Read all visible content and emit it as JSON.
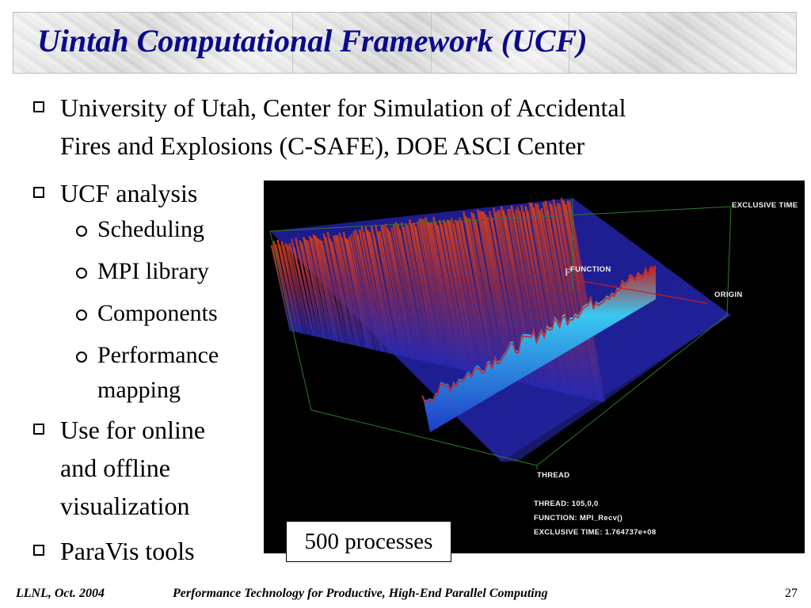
{
  "slide": {
    "title": "Uintah Computational Framework (UCF)",
    "bullets": [
      "University of Utah, Center for Simulation of Accidental",
      "Fires and Explosions (C-SAFE), DOE ASCI Center",
      "UCF analysis",
      "Use for online",
      "and offline",
      "visualization",
      "ParaVis tools"
    ],
    "sub_bullets": [
      "Scheduling",
      "MPI library",
      "Components",
      "Performance",
      "mapping"
    ]
  },
  "visualization": {
    "axis_labels": {
      "exclusive_time": "EXCLUSIVE TIME",
      "function": "FUNCTION",
      "origin": "ORIGIN",
      "thread": "THREAD",
      "function_marker": "F"
    },
    "readout": {
      "thread": "THREAD:  105,0,0",
      "function": "FUNCTION:  MPI_Recv()",
      "exclusive_time": "EXCLUSIVE TIME:  1.764737e+08"
    },
    "colors": {
      "tall_bars_top": "#d2401e",
      "tall_bars_base": "#2a2ab4",
      "ridge": "#38c8f0",
      "ridge_peak": "#c81e1e",
      "box_edges": "#2f7a2f"
    }
  },
  "caption": "500 processes",
  "footer": {
    "left": "LLNL, Oct. 2004",
    "center": "Performance Technology for Productive, High-End Parallel Computing",
    "page": "27"
  }
}
